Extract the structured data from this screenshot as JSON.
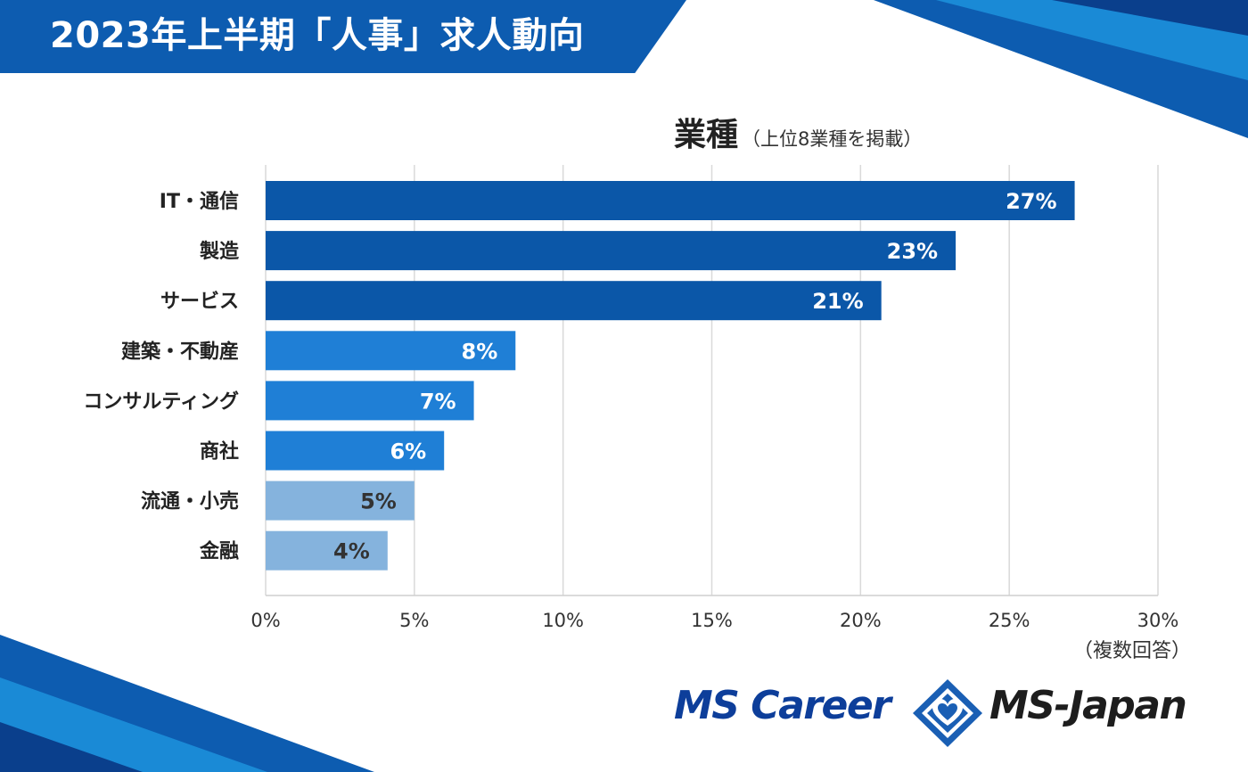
{
  "header": {
    "title": "2023年上半期「人事」求人動向"
  },
  "colors": {
    "title_band": "#0d5cb0",
    "bar_dark": "#0b57a8",
    "bar_mid": "#1f7fd6",
    "bar_light": "#85b3dd",
    "label_light_text": "#ffffff",
    "label_dark_text": "#333333",
    "grid": "#d9d9d9"
  },
  "chart_data": {
    "type": "bar",
    "orientation": "horizontal",
    "title": "業種",
    "subtitle": "（上位8業種を掲載）",
    "categories": [
      "IT・通信",
      "製造",
      "サービス",
      "建築・不動産",
      "コンサルティング",
      "商社",
      "流通・小売",
      "金融"
    ],
    "values": [
      27.2,
      23.2,
      20.7,
      8.4,
      7.0,
      6.0,
      5.0,
      4.1
    ],
    "data_labels": [
      "27%",
      "23%",
      "21%",
      "8%",
      "7%",
      "6%",
      "5%",
      "4%"
    ],
    "tiers": [
      "dark",
      "dark",
      "dark",
      "mid",
      "mid",
      "mid",
      "light",
      "light"
    ],
    "xlim": [
      0,
      30
    ],
    "xticks": [
      0,
      5,
      10,
      15,
      20,
      25,
      30
    ],
    "xtick_labels": [
      "0%",
      "5%",
      "10%",
      "15%",
      "20%",
      "25%",
      "30%"
    ],
    "xlabel": "",
    "ylabel": "",
    "grid": true,
    "legend": "none",
    "note": "（複数回答）"
  },
  "logos": {
    "left": "MS Career",
    "right": "MS-Japan",
    "emblem": "ms-japan-emblem-icon"
  }
}
